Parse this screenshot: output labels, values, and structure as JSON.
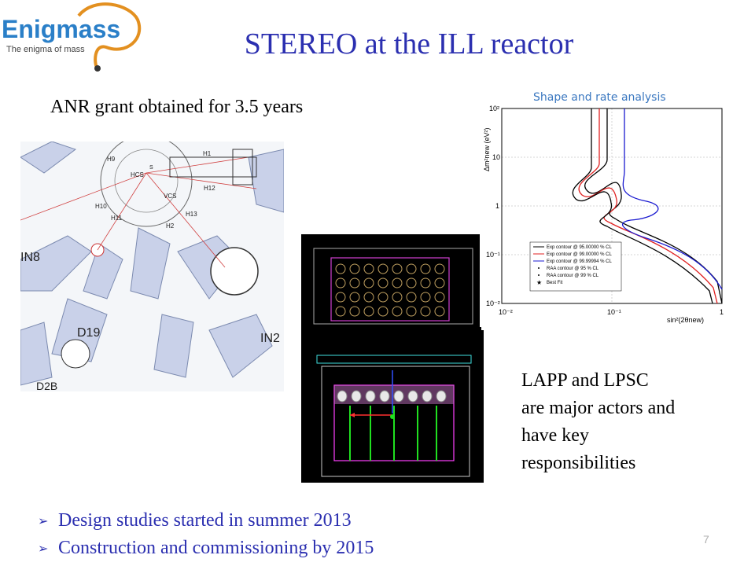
{
  "logo": {
    "name": "Enigmass",
    "tagline": "The enigma of mass"
  },
  "slide": {
    "title": "STEREO at the ILL reactor",
    "grant_text": "ANR grant obtained for 3.5 years",
    "actors_text": [
      "LAPP and LPSC",
      "are major actors and",
      "have key",
      "responsibilities"
    ],
    "bullets": [
      "Design studies started in summer 2013",
      "Construction and commissioning by 2015"
    ],
    "page_number": "7"
  },
  "map_labels": {
    "in8": "IN8",
    "d19": "D19",
    "d2b": "D2B",
    "in2": "IN2",
    "h1": "H1",
    "h9": "H9",
    "h10": "H10",
    "h11": "H11",
    "h12": "H12",
    "h13": "H13",
    "h2": "H2",
    "hcs": "HCS",
    "vcs": "VCS",
    "s": "S"
  },
  "plot": {
    "title": "Shape and rate analysis",
    "x_label": "sin²(2θnew)",
    "y_label": "Δm²new (eV²)",
    "y_ticks": [
      "10²",
      "10",
      "1",
      "10⁻¹",
      "10⁻²"
    ],
    "x_ticks": [
      "10⁻²",
      "10⁻¹",
      "1"
    ],
    "legend": [
      "Exp contour @ 95.00000 % CL",
      "Exp contour @ 99.00000 % CL",
      "Exp contour @ 99.99994 % CL",
      "RAA contour @ 95 % CL",
      "RAA contour @ 99 % CL",
      "Best Fit"
    ],
    "colors": {
      "c95": "#000000",
      "c99": "#e02020",
      "c9999": "#1a1ad0"
    }
  }
}
